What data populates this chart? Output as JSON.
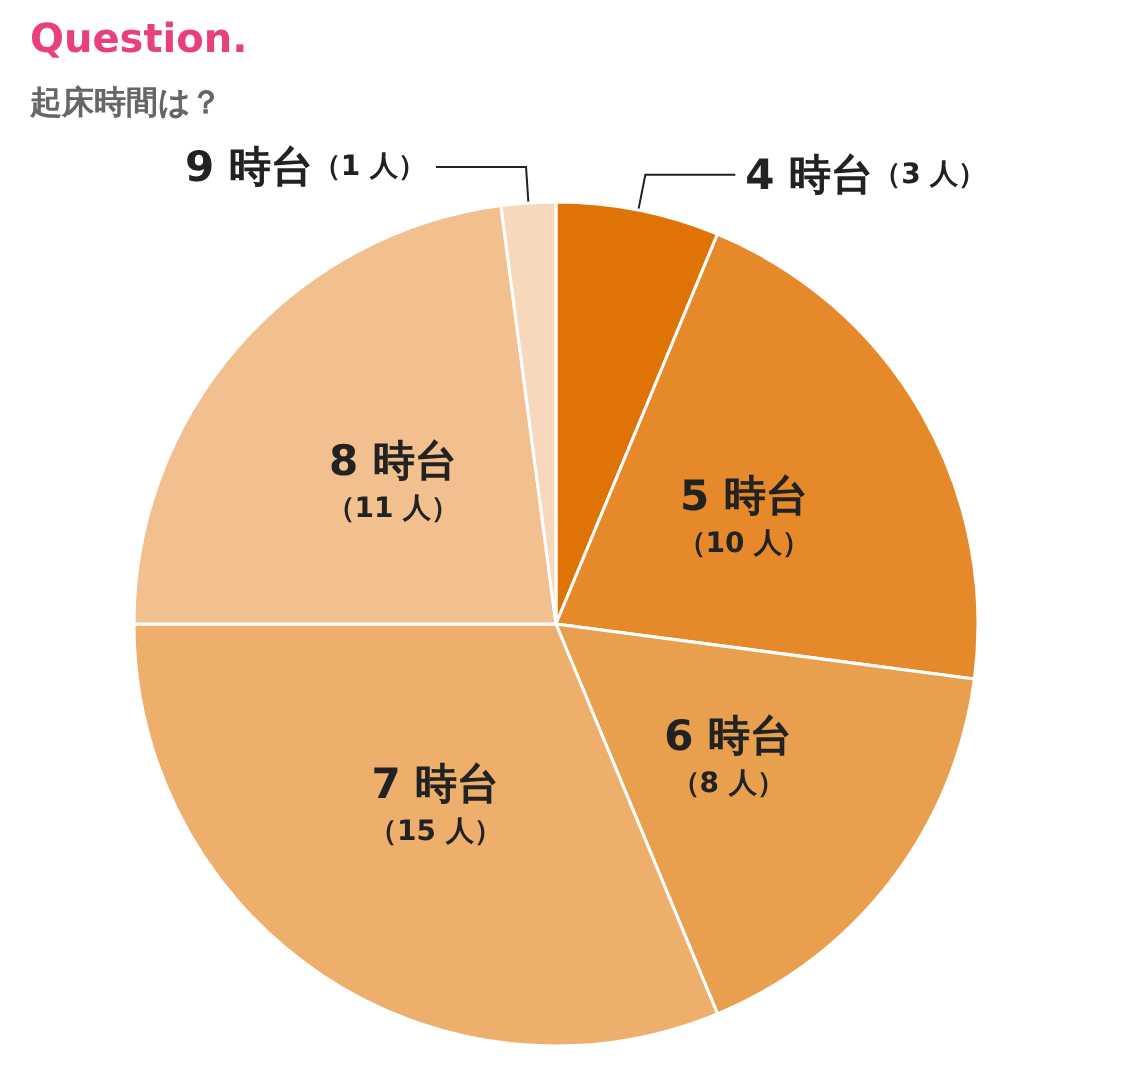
{
  "chart_data": {
    "type": "pie",
    "title": "Question.",
    "subtitle": "起床時間は？",
    "categories": [
      "4 時台",
      "5 時台",
      "6 時台",
      "7 時台",
      "8 時台",
      "9 時台"
    ],
    "values": [
      3,
      10,
      8,
      15,
      11,
      1
    ],
    "value_labels": [
      "（3 人）",
      "（10 人）",
      "（8 人）",
      "（15 人）",
      "（11 人）",
      "（1 人）"
    ],
    "colors": [
      "#e07306",
      "#e5892a",
      "#e9a04e",
      "#eeaf6c",
      "#f2bf8f",
      "#f7d8bd"
    ],
    "legend": false
  }
}
